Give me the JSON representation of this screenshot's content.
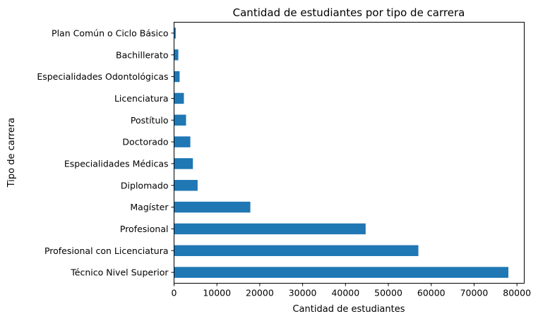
{
  "chart_data": {
    "type": "bar",
    "orientation": "horizontal",
    "title": "Cantidad de estudiantes por tipo de carrera",
    "xlabel": "Cantidad de estudiantes",
    "ylabel": "Tipo de carrera",
    "bar_color": "#1f77b4",
    "xlim": [
      0,
      81700
    ],
    "xticks": [
      0,
      10000,
      20000,
      30000,
      40000,
      50000,
      60000,
      70000,
      80000
    ],
    "grid": false,
    "legend": "none",
    "categories": [
      "Técnico Nivel Superior",
      "Profesional con Licenciatura",
      "Profesional",
      "Magíster",
      "Diplomado",
      "Especialidades Médicas",
      "Doctorado",
      "Postítulo",
      "Licenciatura",
      "Especialidades Odontológicas",
      "Bachillerato",
      "Plan Común o Ciclo Básico"
    ],
    "values": [
      78000,
      57000,
      44700,
      17800,
      5500,
      4400,
      3800,
      2800,
      2300,
      1300,
      1000,
      400
    ]
  }
}
